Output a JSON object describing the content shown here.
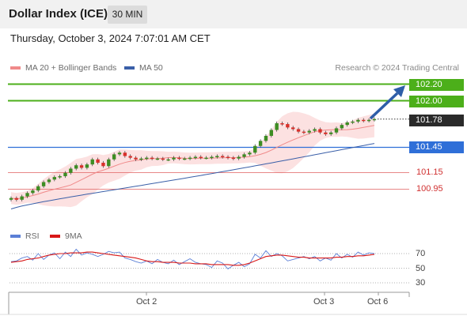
{
  "header": {
    "title": "Dollar Index (ICE)",
    "timeframe": "30 MIN"
  },
  "datetime": "Thursday, October 3, 2024 7:07:01 AM CET",
  "legend": {
    "ma20_label": "MA 20 + Bollinger Bands",
    "ma50_label": "MA 50",
    "ma20_color": "#f08a8a",
    "ma50_color": "#3a5fa8"
  },
  "credit": "Research © 2024 Trading Central",
  "levels": {
    "r2": "102.20",
    "r1": "102.00",
    "last": "101.78",
    "pivot": "101.45",
    "s1": "101.15",
    "s2": "100.95"
  },
  "colors": {
    "resistance": "#4caf1a",
    "pivot": "#2f6fd8",
    "support": "#e06060",
    "last": "#2a2a2a",
    "arrow": "#2e5ea8",
    "candle_up": "#3d8d23",
    "candle_down": "#d9302a"
  },
  "rsi": {
    "label": "RSI",
    "ma_label": "9MA",
    "rsi_color": "#5b7fd6",
    "ma_color": "#d81818",
    "levels": [
      "70",
      "50",
      "30"
    ]
  },
  "xaxis": {
    "labels": [
      "Oct 2",
      "Oct 3",
      "Oct 6"
    ]
  },
  "chart_data": {
    "type": "candlestick",
    "ylim": [
      100.7,
      102.3
    ],
    "price_levels": [
      102.2,
      102.0,
      101.78,
      101.45,
      101.15,
      100.95
    ],
    "close": [
      100.84,
      100.82,
      100.86,
      100.9,
      100.93,
      100.98,
      101.03,
      101.06,
      101.09,
      101.1,
      101.14,
      101.19,
      101.23,
      101.2,
      101.24,
      101.3,
      101.26,
      101.22,
      101.3,
      101.36,
      101.38,
      101.34,
      101.32,
      101.3,
      101.31,
      101.32,
      101.31,
      101.31,
      101.3,
      101.3,
      101.32,
      101.31,
      101.31,
      101.32,
      101.33,
      101.32,
      101.32,
      101.33,
      101.34,
      101.33,
      101.32,
      101.31,
      101.33,
      101.36,
      101.38,
      101.46,
      101.52,
      101.58,
      101.65,
      101.73,
      101.72,
      101.68,
      101.66,
      101.63,
      101.62,
      101.64,
      101.66,
      101.62,
      101.6,
      101.62,
      101.67,
      101.71,
      101.74,
      101.75,
      101.77,
      101.76,
      101.77,
      101.78
    ],
    "rsi": [
      59,
      60,
      64,
      66,
      61,
      70,
      62,
      68,
      71,
      63,
      72,
      66,
      76,
      68,
      71,
      69,
      66,
      69,
      73,
      71,
      72,
      64,
      62,
      59,
      57,
      60,
      56,
      62,
      58,
      56,
      61,
      55,
      59,
      63,
      58,
      56,
      55,
      51,
      60,
      57,
      49,
      54,
      58,
      52,
      56,
      69,
      64,
      74,
      66,
      70,
      67,
      60,
      62,
      64,
      66,
      63,
      66,
      60,
      64,
      61,
      70,
      64,
      69,
      65,
      72,
      68,
      71,
      70
    ],
    "rsi_ma": [
      58,
      59,
      60,
      62,
      63,
      64,
      66,
      68,
      69,
      70,
      70,
      71,
      71,
      71,
      72,
      72,
      71,
      70,
      69,
      68,
      67,
      66,
      65,
      64,
      62,
      60,
      59,
      59,
      58,
      58,
      58,
      57,
      57,
      57,
      56,
      56,
      56,
      55,
      55,
      55,
      55,
      54,
      54,
      55,
      57,
      60,
      63,
      66,
      67,
      68,
      68,
      67,
      66,
      65,
      65,
      64,
      64,
      64,
      64,
      64,
      65,
      65,
      66,
      66,
      67,
      67,
      68,
      69
    ]
  }
}
